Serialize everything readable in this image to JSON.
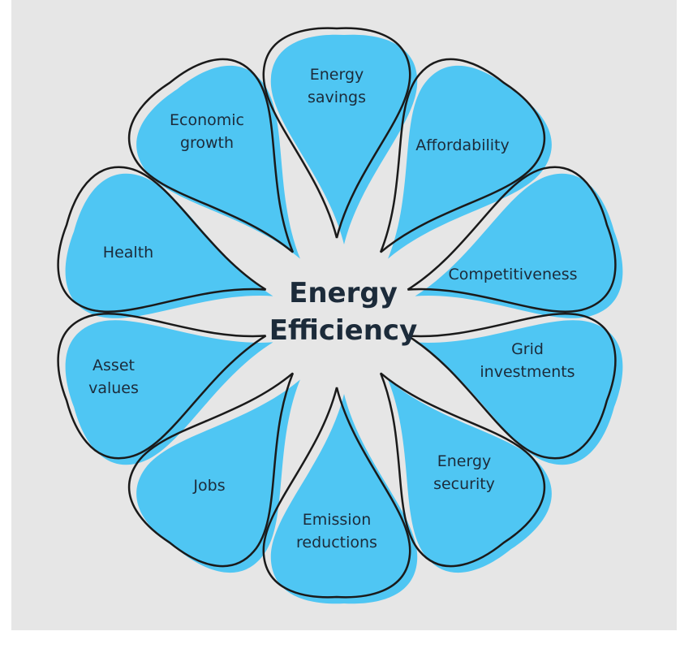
{
  "center": [
    "Energy",
    "Efficiency"
  ],
  "petals": [
    [
      "Energy",
      "savings"
    ],
    [
      "Affordability"
    ],
    [
      "Competitiveness"
    ],
    [
      "Grid",
      "investments"
    ],
    [
      "Energy",
      "security"
    ],
    [
      "Emission",
      "reductions"
    ],
    [
      "Jobs"
    ],
    [
      "Asset",
      "values"
    ],
    [
      "Health"
    ],
    [
      "Economic",
      "growth"
    ]
  ]
}
